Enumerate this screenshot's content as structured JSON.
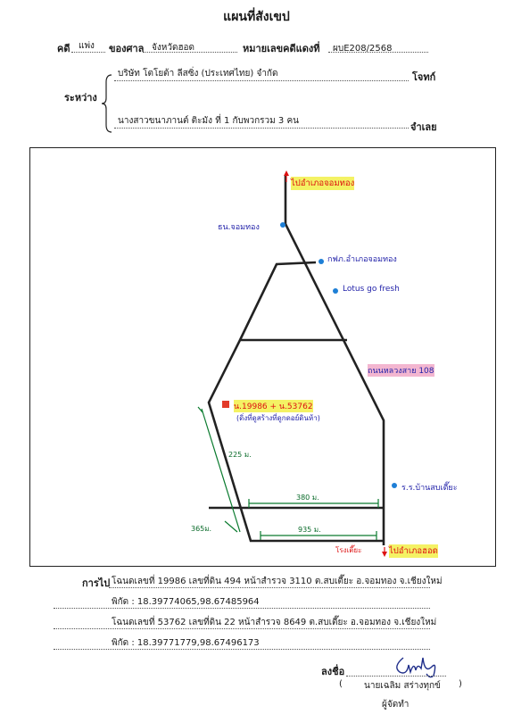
{
  "title": "แผนที่สังเขป",
  "case": {
    "label_case": "คดี",
    "case_type": "แพ่ง",
    "label_court": "ของศาล",
    "court": "จังหวัดฮอด",
    "label_number": "หมายเลขคดีแดงที่",
    "number": "ผบE208/2568"
  },
  "parties": {
    "label_between": "ระหว่าง",
    "plaintiff": "บริษัท โตโยต้า ลีสซิ่ง (ประเทศไทย) จำกัด",
    "plaintiff_role": "โจทก์",
    "defendant": "นางสาวขนาภานต์ ติะมัง ที่ 1 กับพวกรวม 3 คน",
    "defendant_role": "จำเลย"
  },
  "map": {
    "north_label": "ไปอำเภอจอมทอง",
    "south_label": "ไปอำเภอฮอด",
    "poi_school": "ร.ร.บ้านสบเตี๊ยะ",
    "poi_bank": "ธน.จอมทอง",
    "poi_electric": "กฟภ.อำเภอจอมทอง",
    "poi_lotus": "Lotus go fresh",
    "road_label": "ถนนหลวงสาย 108",
    "plot_label": "น.19986 + น.53762",
    "plot_note": "(ดิ่งที่ดูสร้างที่ดูกดอย์ดินห้า)",
    "dist_left_upper": "225 ม.",
    "dist_mid": "380 ม.",
    "dist_left_lower": "365ม.",
    "dist_bottom": "935 ม.",
    "market_label": "โรงเตี๊ยะ"
  },
  "directions": {
    "label": "การไป",
    "deed1": "โฉนดเลขที่ 19986 เลขที่ดิน 494 หน้าสำรวจ 3110 ต.สบเตี๊ยะ อ.จอมทอง จ.เชียงใหม่",
    "coord1": "พิกัด : 18.39774065,98.67485964",
    "deed2": "โฉนดเลขที่ 53762 เลขที่ดิน 22 หน้าสำรวจ 8649 ต.สบเตี๊ยะ อ.จอมทอง จ.เชียงใหม่",
    "coord2": "พิกัด : 18.39771779,98.67496173"
  },
  "signature": {
    "label": "ลงชื่อ",
    "name": "นายเฉลิม  สร่างทุกข์",
    "role": "ผู้จัดทำ",
    "open_paren": "(",
    "close_paren": ")"
  }
}
